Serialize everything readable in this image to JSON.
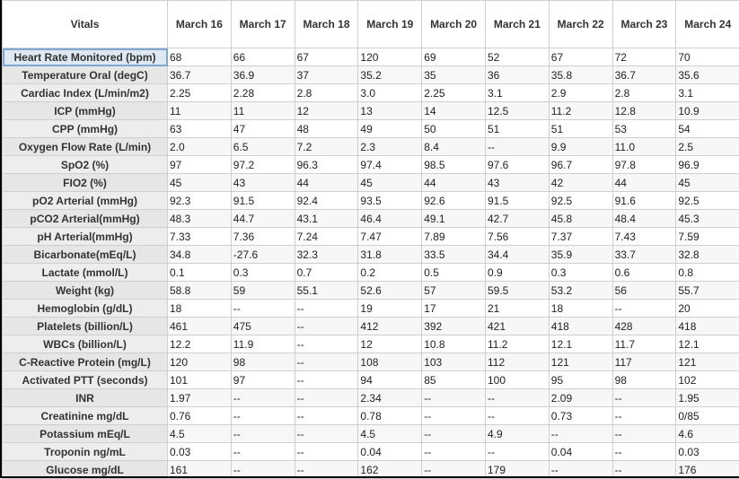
{
  "header": {
    "corner": "Vitals",
    "dates": [
      "March 16",
      "March 17",
      "March 18",
      "March 19",
      "March 20",
      "March 21",
      "March 22",
      "March 23",
      "March 24"
    ]
  },
  "rows": [
    {
      "label": "Heart Rate Monitored (bpm)",
      "values": [
        "68",
        "66",
        "67",
        "120",
        "69",
        "52",
        "67",
        "72",
        "70"
      ]
    },
    {
      "label": "Temperature Oral (degC)",
      "values": [
        "36.7",
        "36.9",
        "37",
        "35.2",
        "35",
        "36",
        "35.8",
        "36.7",
        "35.6"
      ]
    },
    {
      "label": "Cardiac Index (L/min/m2)",
      "values": [
        "2.25",
        "2.28",
        "2.8",
        "3.0",
        "2.25",
        "3.1",
        "2.9",
        "2.8",
        "3.1"
      ]
    },
    {
      "label": "ICP (mmHg)",
      "values": [
        "11",
        "11",
        "12",
        "13",
        "14",
        "12.5",
        "11.2",
        "12.8",
        "10.9"
      ]
    },
    {
      "label": "CPP (mmHg)",
      "values": [
        "63",
        "47",
        "48",
        "49",
        "50",
        "51",
        "51",
        "53",
        "54"
      ]
    },
    {
      "label": "Oxygen Flow Rate (L/min)",
      "values": [
        "2.0",
        "6.5",
        "7.2",
        "2.3",
        "8.4",
        "--",
        "9.9",
        "11.0",
        "2.5"
      ]
    },
    {
      "label": "SpO2 (%)",
      "values": [
        "97",
        "97.2",
        "96.3",
        "97.4",
        "98.5",
        "97.6",
        "96.7",
        "97.8",
        "96.9"
      ]
    },
    {
      "label": "FIO2 (%)",
      "values": [
        "45",
        "43",
        "44",
        "45",
        "44",
        "43",
        "42",
        "44",
        "45"
      ]
    },
    {
      "label": "pO2 Arterial (mmHg)",
      "values": [
        "92.3",
        "91.5",
        "92.4",
        "93.5",
        "92.6",
        "91.5",
        "92.5",
        "91.6",
        "92.5"
      ]
    },
    {
      "label": "pCO2 Arterial(mmHg)",
      "values": [
        "48.3",
        "44.7",
        "43.1",
        "46.4",
        "49.1",
        "42.7",
        "45.8",
        "48.4",
        "45.3"
      ]
    },
    {
      "label": "pH Arterial(mmHg)",
      "values": [
        "7.33",
        "7.36",
        "7.24",
        "7.47",
        "7.89",
        "7.56",
        "7.37",
        "7.43",
        "7.59"
      ]
    },
    {
      "label": "Bicarbonate(mEq/L)",
      "values": [
        "34.8",
        "-27.6",
        "32.3",
        "31.8",
        "33.5",
        "34.4",
        "35.9",
        "33.7",
        "32.8"
      ]
    },
    {
      "label": "Lactate (mmol/L)",
      "values": [
        "0.1",
        "0.3",
        "0.7",
        "0.2",
        "0.5",
        "0.9",
        "0.3",
        "0.6",
        "0.8"
      ]
    },
    {
      "label": "Weight (kg)",
      "values": [
        "58.8",
        "59",
        "55.1",
        "52.6",
        "57",
        "59.5",
        "53.2",
        "56",
        "55.7"
      ]
    },
    {
      "label": "Hemoglobin (g/dL)",
      "values": [
        "18",
        "--",
        "--",
        "19",
        "17",
        "21",
        "18",
        "--",
        "20"
      ]
    },
    {
      "label": "Platelets (billion/L)",
      "values": [
        "461",
        "475",
        "--",
        "412",
        "392",
        "421",
        "418",
        "428",
        "418"
      ]
    },
    {
      "label": "WBCs (billion/L)",
      "values": [
        "12.2",
        "11.9",
        "--",
        "12",
        "10.8",
        "11.2",
        "12.1",
        "11.7",
        "12.1"
      ]
    },
    {
      "label": "C-Reactive Protein (mg/L)",
      "values": [
        "120",
        "98",
        "--",
        "108",
        "103",
        "112",
        "121",
        "117",
        "121"
      ]
    },
    {
      "label": "Activated PTT (seconds)",
      "values": [
        "101",
        "97",
        "--",
        "94",
        "85",
        "100",
        "95",
        "98",
        "102"
      ]
    },
    {
      "label": "INR",
      "values": [
        "1.97",
        "--",
        "--",
        "2.34",
        "--",
        "--",
        "2.09",
        "--",
        "1.95"
      ]
    },
    {
      "label": "Creatinine mg/dL",
      "values": [
        "0.76",
        "--",
        "--",
        "0.78",
        "--",
        "--",
        "0.73",
        "--",
        "0/85"
      ]
    },
    {
      "label": "Potassium mEq/L",
      "values": [
        "4.5",
        "--",
        "--",
        "4.5",
        "--",
        "4.9",
        "--",
        "--",
        "4.6"
      ]
    },
    {
      "label": "Troponin ng/mL",
      "values": [
        "0.03",
        "--",
        "--",
        "0.04",
        "--",
        "--",
        "0.04",
        "--",
        "0.03"
      ]
    },
    {
      "label": "Glucose mg/dL",
      "values": [
        "161",
        "--",
        "--",
        "162",
        "--",
        "179",
        "--",
        "--",
        "176"
      ]
    }
  ],
  "selected_row": 0
}
